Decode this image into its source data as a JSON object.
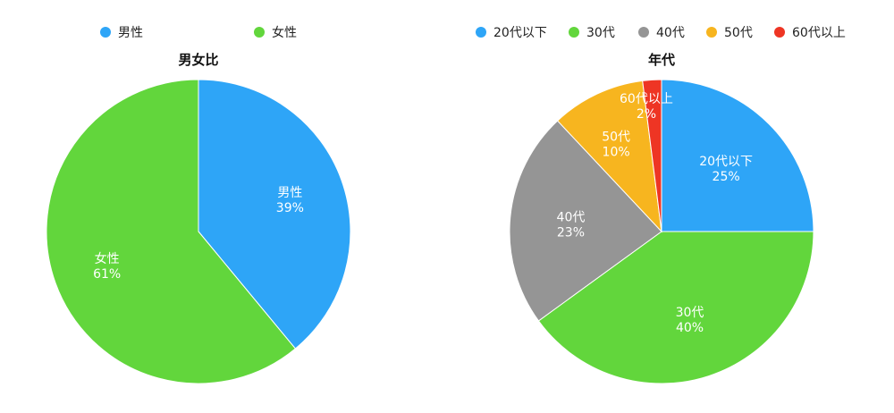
{
  "chart_data": [
    {
      "type": "pie",
      "title": "男女比",
      "legend_position": "top",
      "categories": [
        "男性",
        "女性"
      ],
      "values": [
        39,
        61
      ],
      "value_labels": [
        "39%",
        "61%"
      ],
      "colors": [
        "#2ea5f7",
        "#62d63c"
      ]
    },
    {
      "type": "pie",
      "title": "年代",
      "legend_position": "top",
      "categories": [
        "20代以下",
        "30代",
        "40代",
        "50代",
        "60代以上"
      ],
      "values": [
        25,
        40,
        23,
        10,
        2
      ],
      "value_labels": [
        "25%",
        "40%",
        "23%",
        "10%",
        "2%"
      ],
      "colors": [
        "#2ea5f7",
        "#62d63c",
        "#959595",
        "#f7b51f",
        "#ee3524"
      ]
    }
  ]
}
